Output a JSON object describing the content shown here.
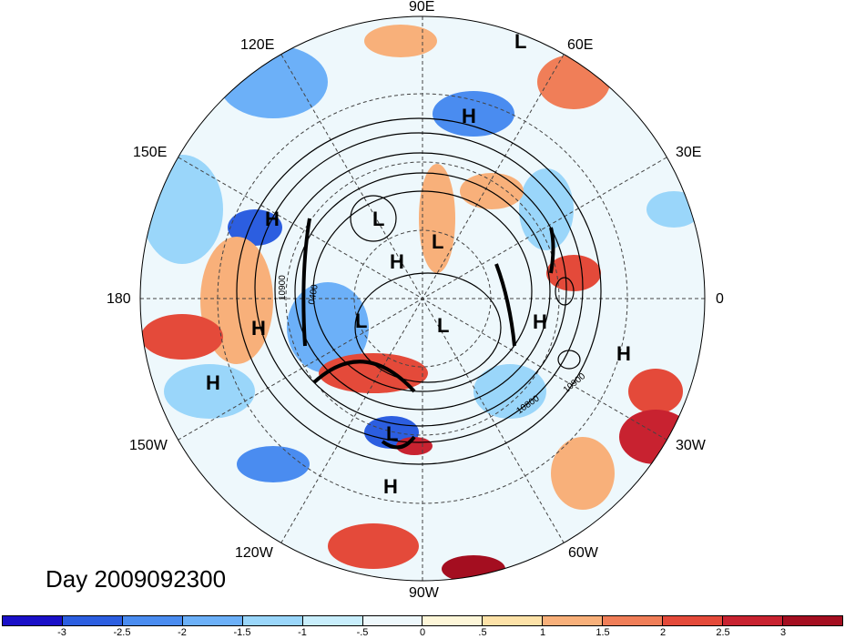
{
  "map": {
    "longitude_labels": [
      {
        "id": "lon-90e",
        "text": "90E"
      },
      {
        "id": "lon-60e",
        "text": "60E"
      },
      {
        "id": "lon-120e",
        "text": "120E"
      },
      {
        "id": "lon-30e",
        "text": "30E"
      },
      {
        "id": "lon-150e",
        "text": "150E"
      },
      {
        "id": "lon-0",
        "text": "0"
      },
      {
        "id": "lon-180",
        "text": "180"
      },
      {
        "id": "lon-30w",
        "text": "30W"
      },
      {
        "id": "lon-150w",
        "text": "150W"
      },
      {
        "id": "lon-60w",
        "text": "60W"
      },
      {
        "id": "lon-120w",
        "text": "120W"
      },
      {
        "id": "lon-90w",
        "text": "90W"
      }
    ],
    "pressure_centers": [
      {
        "id": "L1",
        "text": "L"
      },
      {
        "id": "H1",
        "text": "H"
      },
      {
        "id": "H2",
        "text": "H"
      },
      {
        "id": "L2",
        "text": "L"
      },
      {
        "id": "L3",
        "text": "L"
      },
      {
        "id": "H3",
        "text": "H"
      },
      {
        "id": "L4",
        "text": "L"
      },
      {
        "id": "L5",
        "text": "L"
      },
      {
        "id": "H4",
        "text": "H"
      },
      {
        "id": "H5",
        "text": "H"
      },
      {
        "id": "H6",
        "text": "H"
      },
      {
        "id": "H7",
        "text": "H"
      },
      {
        "id": "L6",
        "text": "L"
      },
      {
        "id": "H8",
        "text": "H"
      }
    ],
    "contour_labels": [
      "10900",
      "0400",
      "10800",
      "10900"
    ],
    "day_label": "Day 2009092300"
  },
  "colorbar": {
    "colors": [
      "#1a10c8",
      "#2c5ee0",
      "#4a8cf0",
      "#6cb0f8",
      "#9ad6fa",
      "#c8eefc",
      "#eef8fc",
      "#fdf6d8",
      "#fde2a8",
      "#f8b07a",
      "#f07e58",
      "#e44a3a",
      "#c82230",
      "#a40e20"
    ],
    "tick_labels": [
      "-3",
      "-2.5",
      "-2",
      "-1.5",
      "-1",
      "-.5",
      "0",
      ".5",
      "1",
      "1.5",
      "2",
      "2.5",
      "3"
    ]
  }
}
